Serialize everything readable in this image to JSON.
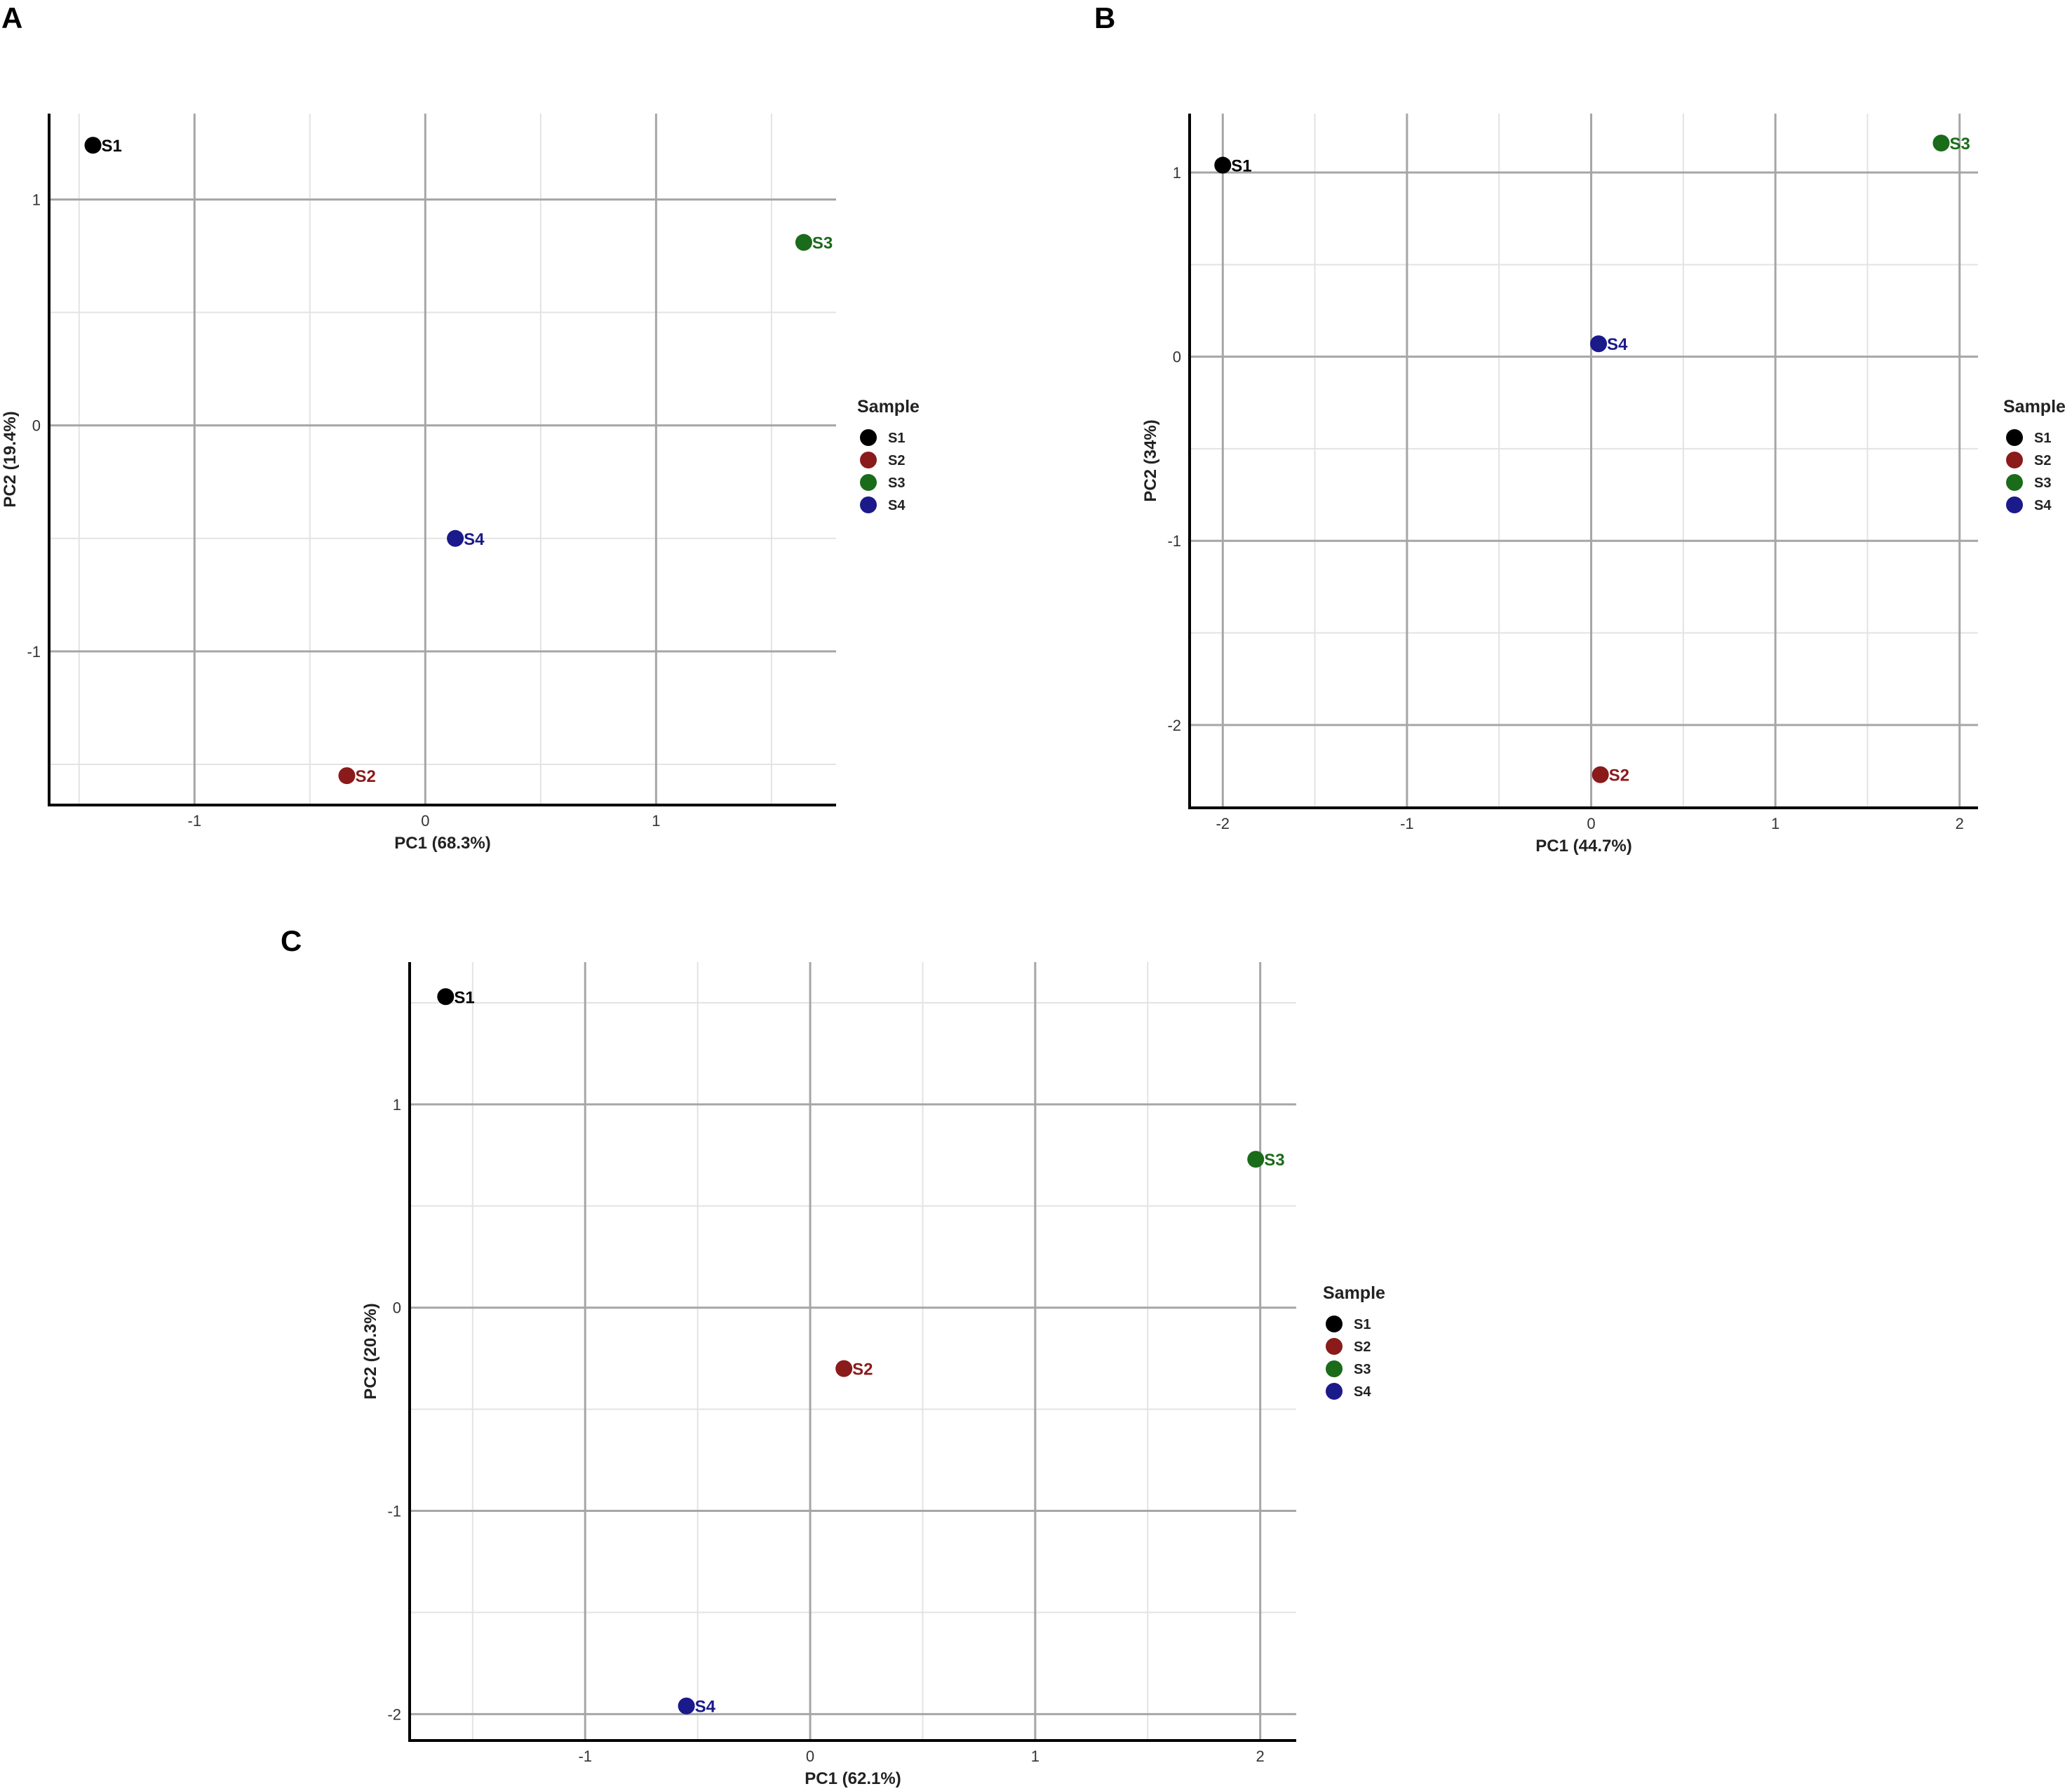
{
  "chart_data": [
    {
      "type": "scatter",
      "panel": "A",
      "title": "",
      "xlabel": "PC1 (68.3%)",
      "ylabel": "PC2 (19.4%)",
      "xlim": [
        -1.63,
        1.78
      ],
      "ylim": [
        -1.68,
        1.38
      ],
      "xticks": [
        -1,
        0,
        1
      ],
      "yticks": [
        -1,
        0,
        1
      ],
      "grid": true,
      "legend": {
        "title": "Sample",
        "position": "right"
      },
      "series": [
        {
          "name": "S1",
          "color": "#000000",
          "x": -1.44,
          "y": 1.24,
          "label": "S1"
        },
        {
          "name": "S2",
          "color": "#8b1a1a",
          "x": -0.34,
          "y": -1.55,
          "label": "S2"
        },
        {
          "name": "S3",
          "color": "#1a6b1a",
          "x": 1.64,
          "y": 0.81,
          "label": "S3"
        },
        {
          "name": "S4",
          "color": "#1a1a8b",
          "x": 0.13,
          "y": -0.5,
          "label": "S4"
        }
      ]
    },
    {
      "type": "scatter",
      "panel": "B",
      "title": "",
      "xlabel": "PC1 (44.7%)",
      "ylabel": "PC2 (34%)",
      "xlim": [
        -2.18,
        2.1
      ],
      "ylim": [
        -2.45,
        1.32
      ],
      "xticks": [
        -2,
        -1,
        0,
        1,
        2
      ],
      "yticks": [
        -2,
        -1,
        0,
        1
      ],
      "grid": true,
      "legend": {
        "title": "Sample",
        "position": "right"
      },
      "series": [
        {
          "name": "S1",
          "color": "#000000",
          "x": -2.0,
          "y": 1.04,
          "label": "S1"
        },
        {
          "name": "S2",
          "color": "#8b1a1a",
          "x": 0.05,
          "y": -2.27,
          "label": "S2"
        },
        {
          "name": "S3",
          "color": "#1a6b1a",
          "x": 1.9,
          "y": 1.16,
          "label": "S3"
        },
        {
          "name": "S4",
          "color": "#1a1a8b",
          "x": 0.04,
          "y": 0.07,
          "label": "S4"
        }
      ]
    },
    {
      "type": "scatter",
      "panel": "C",
      "title": "",
      "xlabel": "PC1 (62.1%)",
      "ylabel": "PC2 (20.3%)",
      "xlim": [
        -1.78,
        2.16
      ],
      "ylim": [
        -2.13,
        1.7
      ],
      "xticks": [
        -1,
        0,
        1,
        2
      ],
      "yticks": [
        -2,
        -1,
        0,
        1
      ],
      "grid": true,
      "legend": {
        "title": "Sample",
        "position": "right"
      },
      "series": [
        {
          "name": "S1",
          "color": "#000000",
          "x": -1.62,
          "y": 1.53,
          "label": "S1"
        },
        {
          "name": "S2",
          "color": "#8b1a1a",
          "x": 0.15,
          "y": -0.3,
          "label": "S2"
        },
        {
          "name": "S3",
          "color": "#1a6b1a",
          "x": 1.98,
          "y": 0.73,
          "label": "S3"
        },
        {
          "name": "S4",
          "color": "#1a1a8b",
          "x": -0.55,
          "y": -1.96,
          "label": "S4"
        }
      ]
    }
  ]
}
